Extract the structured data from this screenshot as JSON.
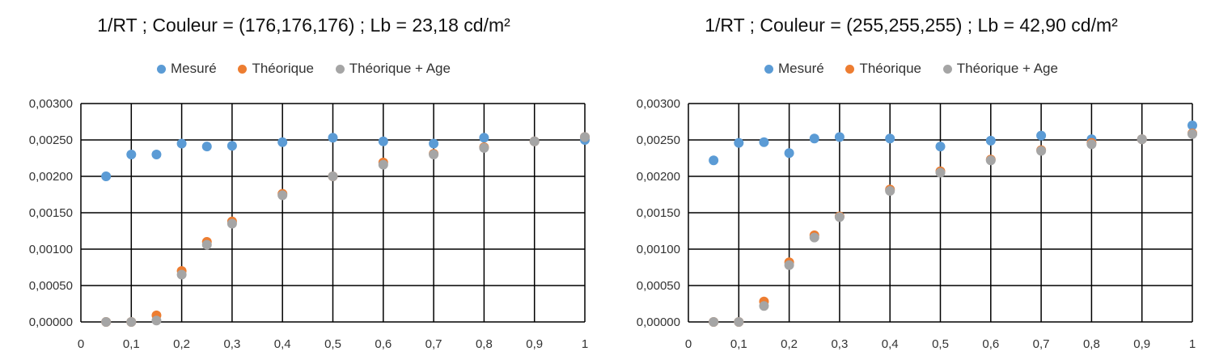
{
  "chart_data": [
    {
      "type": "scatter",
      "title": "1/RT ; Couleur = (176,176,176) ; Lb = 23,18 cd/m²",
      "xlim": [
        0,
        1
      ],
      "ylim": [
        0,
        0.003
      ],
      "x_ticks": [
        "0",
        "0,1",
        "0,2",
        "0,3",
        "0,4",
        "0,5",
        "0,6",
        "0,7",
        "0,8",
        "0,9",
        "1"
      ],
      "y_ticks": [
        "0,00000",
        "0,00050",
        "0,00100",
        "0,00150",
        "0,00200",
        "0,00250",
        "0,00300"
      ],
      "grid": true,
      "legend_position": "top",
      "series": [
        {
          "name": "Mesuré",
          "color": "#5B9BD5",
          "x": [
            0.05,
            0.1,
            0.15,
            0.2,
            0.25,
            0.3,
            0.4,
            0.5,
            0.6,
            0.7,
            0.8,
            0.9,
            1.0
          ],
          "y": [
            0.002,
            0.0023,
            0.0023,
            0.00245,
            0.00241,
            0.00242,
            0.00247,
            0.00253,
            0.00248,
            0.00245,
            0.00253,
            0.00248,
            0.0025
          ]
        },
        {
          "name": "Théorique",
          "color": "#ED7D31",
          "x": [
            0.05,
            0.1,
            0.15,
            0.2,
            0.25,
            0.3,
            0.4,
            0.5,
            0.6,
            0.7,
            0.8,
            0.9,
            1.0
          ],
          "y": [
            0.0,
            0.0,
            9e-05,
            0.0007,
            0.0011,
            0.00138,
            0.00176,
            0.002,
            0.00219,
            0.00231,
            0.0024,
            0.00248,
            0.00254
          ]
        },
        {
          "name": "Théorique + Age",
          "color": "#A5A5A5",
          "x": [
            0.05,
            0.1,
            0.15,
            0.2,
            0.25,
            0.3,
            0.4,
            0.5,
            0.6,
            0.7,
            0.8,
            0.9,
            1.0
          ],
          "y": [
            0.0,
            0.0,
            2e-05,
            0.00065,
            0.00106,
            0.00135,
            0.00174,
            0.002,
            0.00216,
            0.0023,
            0.00239,
            0.00248,
            0.00254
          ]
        }
      ]
    },
    {
      "type": "scatter",
      "title": "1/RT ; Couleur = (255,255,255) ; Lb = 42,90 cd/m²",
      "xlim": [
        0,
        1
      ],
      "ylim": [
        0,
        0.003
      ],
      "x_ticks": [
        "0",
        "0,1",
        "0,2",
        "0,3",
        "0,4",
        "0,5",
        "0,6",
        "0,7",
        "0,8",
        "0,9",
        "1"
      ],
      "y_ticks": [
        "0,00000",
        "0,00050",
        "0,00100",
        "0,00150",
        "0,00200",
        "0,00250",
        "0,00300"
      ],
      "grid": true,
      "legend_position": "top",
      "series": [
        {
          "name": "Mesuré",
          "color": "#5B9BD5",
          "x": [
            0.05,
            0.1,
            0.15,
            0.2,
            0.25,
            0.3,
            0.4,
            0.5,
            0.6,
            0.7,
            0.8,
            0.9,
            1.0
          ],
          "y": [
            0.00222,
            0.00246,
            0.00247,
            0.00232,
            0.00252,
            0.00254,
            0.00252,
            0.00241,
            0.00249,
            0.00256,
            0.00251,
            0.00251,
            0.0027
          ]
        },
        {
          "name": "Théorique",
          "color": "#ED7D31",
          "x": [
            0.05,
            0.1,
            0.15,
            0.2,
            0.25,
            0.3,
            0.4,
            0.5,
            0.6,
            0.7,
            0.8,
            0.9,
            1.0
          ],
          "y": [
            0.0,
            0.0,
            0.00028,
            0.00082,
            0.00119,
            0.00145,
            0.00182,
            0.00207,
            0.00223,
            0.00236,
            0.00246,
            0.00251,
            0.00259
          ]
        },
        {
          "name": "Théorique + Age",
          "color": "#A5A5A5",
          "x": [
            0.05,
            0.1,
            0.15,
            0.2,
            0.25,
            0.3,
            0.4,
            0.5,
            0.6,
            0.7,
            0.8,
            0.9,
            1.0
          ],
          "y": [
            0.0,
            0.0,
            0.00022,
            0.00078,
            0.00116,
            0.00144,
            0.0018,
            0.00205,
            0.00222,
            0.00235,
            0.00244,
            0.00251,
            0.00258
          ]
        }
      ]
    }
  ]
}
